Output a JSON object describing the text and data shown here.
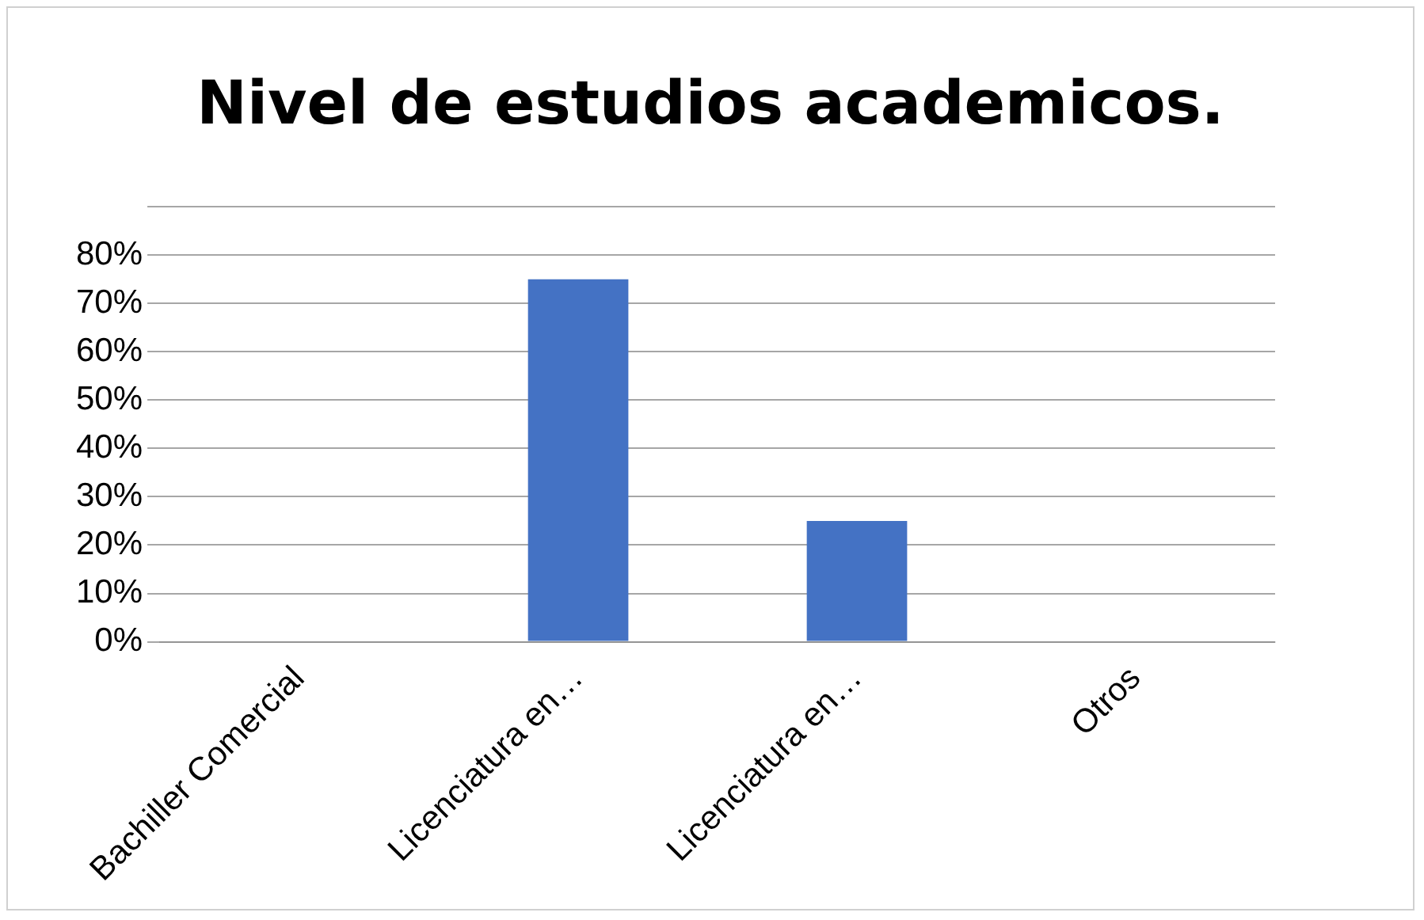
{
  "chart_data": {
    "type": "bar",
    "title": "Nivel de estudios academicos.",
    "categories": [
      "Bachiller Comercial",
      "Licenciatura en…",
      "Licenciatura en…",
      "Otros"
    ],
    "values": [
      0,
      75,
      25,
      0
    ],
    "color": "#4472c4",
    "ylim": [
      0,
      90
    ],
    "yticks": [
      {
        "value": 0,
        "label": "0%"
      },
      {
        "value": 10,
        "label": "10%"
      },
      {
        "value": 20,
        "label": "20%"
      },
      {
        "value": 30,
        "label": "30%"
      },
      {
        "value": 40,
        "label": "40%"
      },
      {
        "value": 50,
        "label": "50%"
      },
      {
        "value": 60,
        "label": "60%"
      },
      {
        "value": 70,
        "label": "70%"
      },
      {
        "value": 80,
        "label": "80%"
      },
      {
        "value": 90,
        "label": null
      }
    ],
    "grid": "y",
    "legend": false
  }
}
